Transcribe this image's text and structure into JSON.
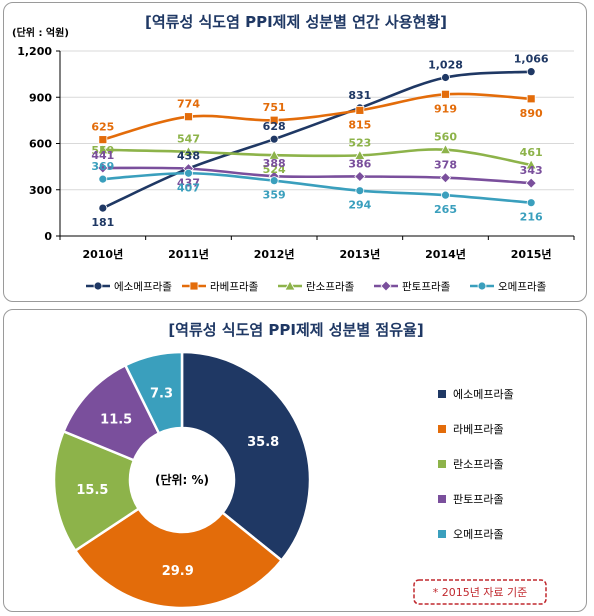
{
  "colors": {
    "title": "#1f3864",
    "series": [
      "#1f3864",
      "#e36c0a",
      "#8db34a",
      "#7a4f9c",
      "#3a9fbd"
    ],
    "axis": "#000000",
    "grid": "#d9d9d9",
    "footnote_border": "#c0282e",
    "footnote_text": "#c0282e"
  },
  "chart_data": [
    {
      "type": "line",
      "title": "[역류성 식도염 PPI제제 성분별 연간 사용현황]",
      "unit_label": "(단위 : 억원)",
      "categories": [
        "2010년",
        "2011년",
        "2012년",
        "2013년",
        "2014년",
        "2015년"
      ],
      "y_ticks": [
        "0",
        "300",
        "600",
        "900",
        "1,200"
      ],
      "ylim": [
        0,
        1200
      ],
      "grid": true,
      "legend_position": "bottom",
      "series": [
        {
          "name": "에소메프라졸",
          "marker": "circle",
          "values": [
            181,
            438,
            628,
            831,
            1028,
            1066
          ],
          "labels": [
            "181",
            "438",
            "628",
            "831",
            "1,028",
            "1,066"
          ]
        },
        {
          "name": "라베프라졸",
          "marker": "square",
          "values": [
            625,
            774,
            751,
            815,
            919,
            890
          ],
          "labels": [
            "625",
            "774",
            "751",
            "815",
            "919",
            "890"
          ]
        },
        {
          "name": "란소프라졸",
          "marker": "triangle",
          "values": [
            559,
            547,
            524,
            523,
            560,
            461
          ],
          "labels": [
            "559",
            "547",
            "524",
            "523",
            "560",
            "461"
          ]
        },
        {
          "name": "판토프라졸",
          "marker": "diamond",
          "values": [
            441,
            437,
            388,
            386,
            378,
            343
          ],
          "labels": [
            "441",
            "437",
            "388",
            "386",
            "378",
            "343"
          ]
        },
        {
          "name": "오메프라졸",
          "marker": "circle",
          "values": [
            369,
            407,
            359,
            294,
            265,
            216
          ],
          "labels": [
            "369",
            "407",
            "359",
            "294",
            "265",
            "216"
          ]
        }
      ]
    },
    {
      "type": "pie",
      "title": "[역류성 식도염 PPI제제 성분별 점유율]",
      "center_label": "(단위: %)",
      "legend_position": "right",
      "categories": [
        "에소메프라졸",
        "라베프라졸",
        "란소프라졸",
        "판토프라졸",
        "오메프라졸"
      ],
      "values": [
        35.8,
        29.9,
        15.5,
        11.5,
        7.3
      ],
      "labels": [
        "35.8",
        "29.9",
        "15.5",
        "11.5",
        "7.3"
      ],
      "footnote": "* 2015년 자료 기준"
    }
  ]
}
